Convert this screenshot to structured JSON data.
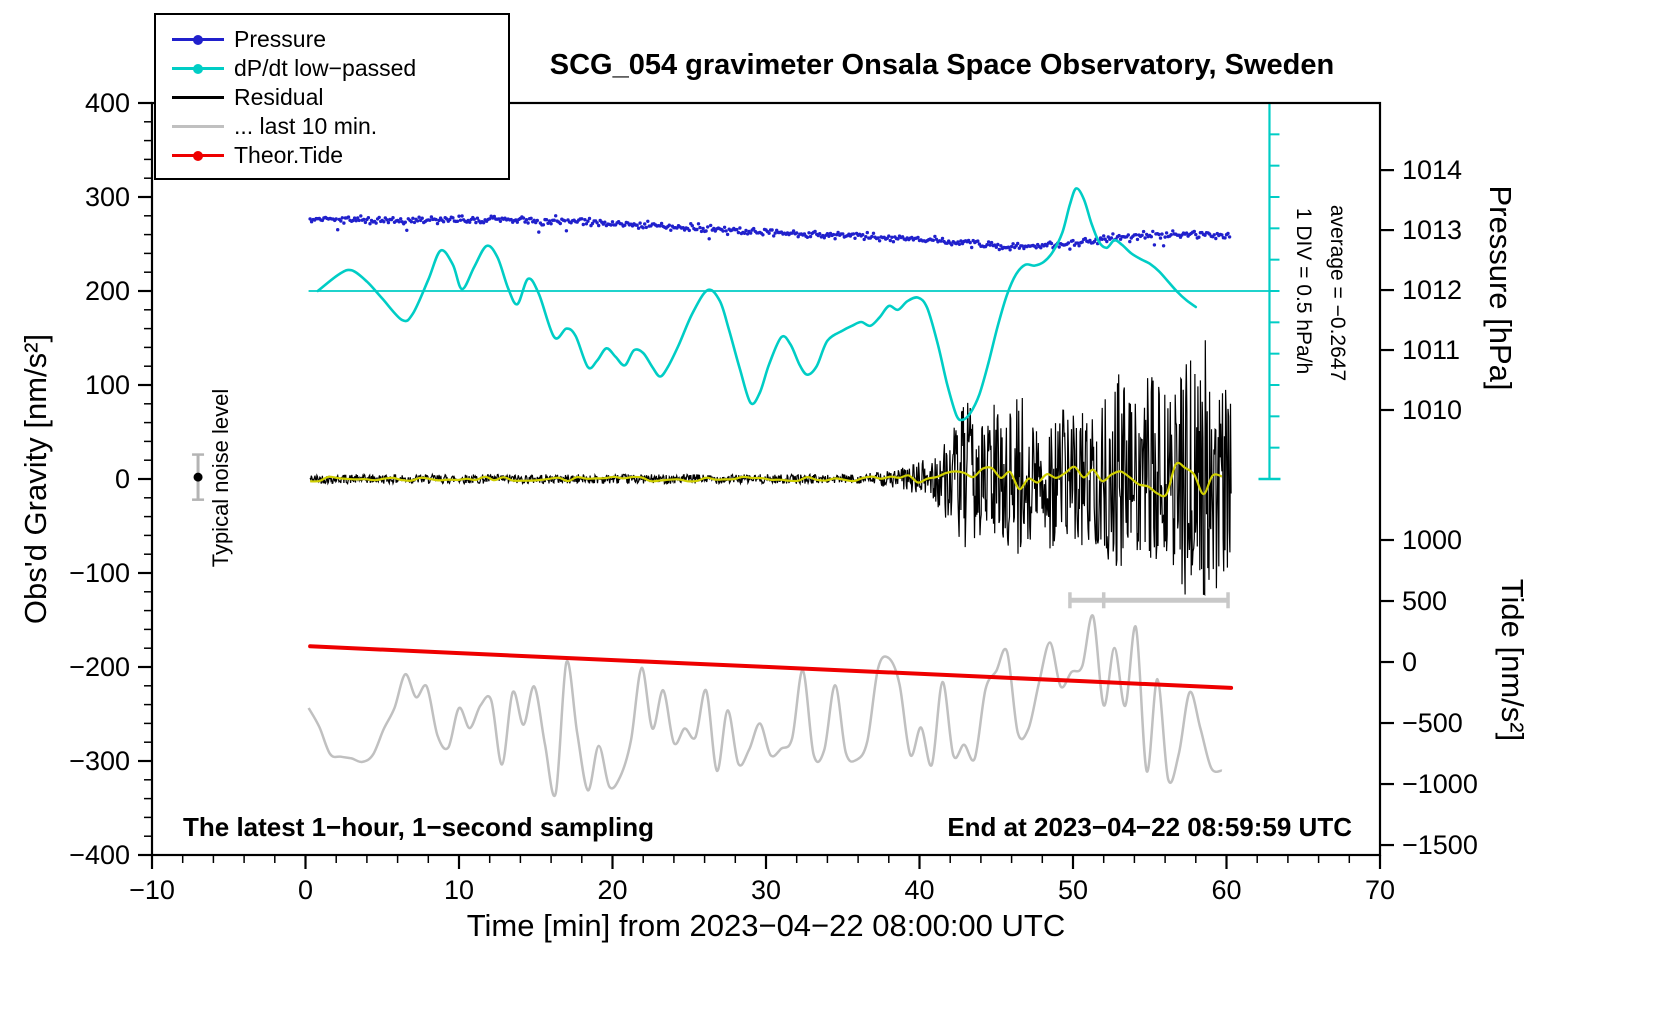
{
  "footer_left": "The latest 1−hour, 1−second sampling",
  "footer_right": "End at 2023−04−22 08:59:59 UTC",
  "annotations": {
    "noise_label": "Typical noise level",
    "div_label": "1 DIV = 0.5 hPa/h",
    "average_label": "average = −0.2647"
  },
  "legend": {
    "items": [
      {
        "label": "Pressure",
        "color": "#2020cc",
        "dot": true
      },
      {
        "label": "dP/dt low−passed",
        "color": "#00cdc5",
        "dot": true
      },
      {
        "label": "Residual",
        "color": "#000000",
        "dot": false
      },
      {
        "label": "... last 10 min.",
        "color": "#c0c0c0",
        "dot": false
      },
      {
        "label": "Theor.Tide",
        "color": "#ee0000",
        "dot": true
      }
    ]
  },
  "chart_data": {
    "type": "line",
    "title": "SCG_054 gravimeter Onsala Space Observatory, Sweden",
    "axes": {
      "x": {
        "label": "Time [min] from 2023−04−22 08:00:00 UTC",
        "range": [
          -10,
          70
        ],
        "major_step": 10,
        "minor_step": 2
      },
      "gravity": {
        "label": "Obs'd Gravity [nm/s²]",
        "range": [
          -400,
          400
        ],
        "major_step": 100,
        "minor_step": 20
      },
      "pressure": {
        "label": "Pressure [hPa]",
        "ticks": [
          1014,
          1013,
          1012,
          1011,
          1010
        ],
        "gravity_per_hpa": 63.8,
        "gravity_at_1012": 201
      },
      "tide": {
        "label": "Tide [nm/s²]",
        "ticks": [
          1000,
          500,
          0,
          -500,
          -1000,
          -1500
        ],
        "gravity_per_unit": 0.1298,
        "gravity_at_zero": -194.7
      }
    },
    "series": [
      {
        "name": "... last 10 min.",
        "axis": "gravity",
        "color": "#c0c0c0",
        "style": "valuenoise",
        "seed": 13,
        "knot_dt": 0.7,
        "center": -250,
        "x_range": [
          0.2,
          60.2
        ],
        "width": 2.5,
        "clamp": [
          -398,
          -126
        ],
        "envelope": [
          [
            0,
            48
          ],
          [
            4,
            52
          ],
          [
            7,
            58
          ],
          [
            10,
            52
          ],
          [
            12,
            62
          ],
          [
            14,
            85
          ],
          [
            15.5,
            100
          ],
          [
            17,
            112
          ],
          [
            18.5,
            98
          ],
          [
            20,
            82
          ],
          [
            22,
            58
          ],
          [
            24,
            55
          ],
          [
            26,
            62
          ],
          [
            28,
            64
          ],
          [
            30,
            58
          ],
          [
            32,
            54
          ],
          [
            34,
            58
          ],
          [
            36,
            62
          ],
          [
            38,
            60
          ],
          [
            40,
            58
          ],
          [
            42,
            62
          ],
          [
            44,
            66
          ],
          [
            46,
            72
          ],
          [
            48,
            88
          ],
          [
            50,
            112
          ],
          [
            51.5,
            125
          ],
          [
            53,
            128
          ],
          [
            54.5,
            135
          ],
          [
            56,
            122
          ],
          [
            57,
            108
          ],
          [
            58,
            82
          ],
          [
            59,
            74
          ],
          [
            60.2,
            68
          ]
        ]
      },
      {
        "name": "Theor.Tide",
        "axis": "tide",
        "color": "#ee0000",
        "style": "smooth",
        "width": 4,
        "points": [
          [
            0.3,
            129
          ],
          [
            15,
            44
          ],
          [
            30,
            -40
          ],
          [
            45,
            -125
          ],
          [
            60.3,
            -212
          ]
        ]
      },
      {
        "name": "Residual",
        "axis": "gravity",
        "color": "#000000",
        "style": "whitenoise",
        "seed": 42,
        "dt": 0.04,
        "center": 0,
        "x_range": [
          0.3,
          60.3
        ],
        "width": 1.2,
        "envelope": [
          [
            0,
            5
          ],
          [
            36,
            5
          ],
          [
            38,
            9
          ],
          [
            40,
            18
          ],
          [
            41.5,
            35
          ],
          [
            42.3,
            60
          ],
          [
            43,
            85
          ],
          [
            43.6,
            68
          ],
          [
            44.2,
            58
          ],
          [
            44.8,
            88
          ],
          [
            45.4,
            66
          ],
          [
            46,
            82
          ],
          [
            46.6,
            95
          ],
          [
            47.2,
            68
          ],
          [
            47.8,
            58
          ],
          [
            48.4,
            78
          ],
          [
            49,
            95
          ],
          [
            49.6,
            78
          ],
          [
            50.2,
            64
          ],
          [
            50.8,
            88
          ],
          [
            51.4,
            70
          ],
          [
            52,
            84
          ],
          [
            52.6,
            100
          ],
          [
            53.2,
            118
          ],
          [
            53.8,
            88
          ],
          [
            54.4,
            80
          ],
          [
            55,
            125
          ],
          [
            55.6,
            98
          ],
          [
            56.2,
            88
          ],
          [
            56.8,
            112
          ],
          [
            57.4,
            135
          ],
          [
            58,
            118
          ],
          [
            58.6,
            150
          ],
          [
            59.2,
            128
          ],
          [
            59.8,
            100
          ],
          [
            60.3,
            90
          ]
        ]
      },
      {
        "name": "Residual low−passed",
        "axis": "gravity",
        "color": "#cfcf00",
        "style": "valuenoise",
        "seed": 7,
        "knot_dt": 0.6,
        "center": 0,
        "x_range": [
          0.3,
          60.3
        ],
        "width": 2.2,
        "envelope": [
          [
            0,
            2.5
          ],
          [
            36,
            2.5
          ],
          [
            40,
            5
          ],
          [
            43,
            10
          ],
          [
            45,
            13
          ],
          [
            47,
            10
          ],
          [
            49,
            12
          ],
          [
            51,
            15
          ],
          [
            53,
            17
          ],
          [
            55,
            15
          ],
          [
            57,
            18
          ],
          [
            59,
            16
          ],
          [
            60.3,
            13
          ]
        ]
      },
      {
        "name": "Pressure",
        "axis": "pressure",
        "color": "#2020cc",
        "style": "dots",
        "seed": 99,
        "dot_r": 1.7,
        "step": 0.1,
        "noise_hpa": 0.03,
        "outlier_chance": 0.02,
        "points": [
          [
            0.3,
            1013.18
          ],
          [
            3,
            1013.17
          ],
          [
            6,
            1013.16
          ],
          [
            9,
            1013.17
          ],
          [
            12,
            1013.18
          ],
          [
            15,
            1013.16
          ],
          [
            18,
            1013.14
          ],
          [
            21,
            1013.1
          ],
          [
            24,
            1013.05
          ],
          [
            27,
            1013.01
          ],
          [
            30,
            1012.97
          ],
          [
            33,
            1012.93
          ],
          [
            36,
            1012.9
          ],
          [
            39,
            1012.86
          ],
          [
            42,
            1012.8
          ],
          [
            44,
            1012.76
          ],
          [
            46,
            1012.72
          ],
          [
            48,
            1012.73
          ],
          [
            50,
            1012.79
          ],
          [
            52,
            1012.86
          ],
          [
            54,
            1012.9
          ],
          [
            56,
            1012.92
          ],
          [
            58,
            1012.93
          ],
          [
            60.3,
            1012.89
          ]
        ]
      },
      {
        "name": "dP/dt low−passed",
        "axis": "gravity",
        "color": "#00cdc5",
        "style": "smooth",
        "width": 2.6,
        "points": [
          [
            0.8,
            200
          ],
          [
            2.2,
            218
          ],
          [
            3,
            222
          ],
          [
            4,
            210
          ],
          [
            5,
            192
          ],
          [
            6.3,
            169
          ],
          [
            7,
            176
          ],
          [
            8,
            212
          ],
          [
            8.8,
            243
          ],
          [
            9.6,
            228
          ],
          [
            10.2,
            202
          ],
          [
            11,
            226
          ],
          [
            11.8,
            248
          ],
          [
            12.5,
            236
          ],
          [
            13.2,
            203
          ],
          [
            13.8,
            186
          ],
          [
            14.5,
            213
          ],
          [
            15.2,
            197
          ],
          [
            16.2,
            151
          ],
          [
            17,
            160
          ],
          [
            17.6,
            152
          ],
          [
            18.4,
            119
          ],
          [
            19,
            126
          ],
          [
            19.6,
            139
          ],
          [
            20.2,
            130
          ],
          [
            20.8,
            121
          ],
          [
            21.4,
            137
          ],
          [
            22,
            134
          ],
          [
            22.6,
            119
          ],
          [
            23.1,
            109
          ],
          [
            23.6,
            119
          ],
          [
            24.3,
            142
          ],
          [
            25.2,
            176
          ],
          [
            26.2,
            201
          ],
          [
            27,
            189
          ],
          [
            27.6,
            158
          ],
          [
            28.3,
            117
          ],
          [
            29,
            81
          ],
          [
            29.6,
            92
          ],
          [
            30.2,
            122
          ],
          [
            31,
            151
          ],
          [
            31.6,
            143
          ],
          [
            32.2,
            121
          ],
          [
            32.7,
            111
          ],
          [
            33.3,
            120
          ],
          [
            34,
            147
          ],
          [
            35,
            158
          ],
          [
            35.6,
            163
          ],
          [
            36.2,
            167
          ],
          [
            36.8,
            163
          ],
          [
            37.4,
            172
          ],
          [
            38,
            184
          ],
          [
            38.6,
            180
          ],
          [
            39.2,
            189
          ],
          [
            39.9,
            193
          ],
          [
            40.5,
            182
          ],
          [
            41.2,
            143
          ],
          [
            41.8,
            101
          ],
          [
            42.4,
            68
          ],
          [
            42.8,
            63
          ],
          [
            43.3,
            70
          ],
          [
            43.9,
            90
          ],
          [
            44.5,
            124
          ],
          [
            45.1,
            163
          ],
          [
            45.7,
            196
          ],
          [
            46.3,
            218
          ],
          [
            46.9,
            228
          ],
          [
            47.5,
            227
          ],
          [
            48.1,
            231
          ],
          [
            48.7,
            242
          ],
          [
            49.3,
            262
          ],
          [
            49.8,
            292
          ],
          [
            50.2,
            309
          ],
          [
            50.7,
            298
          ],
          [
            51.2,
            272
          ],
          [
            51.7,
            252
          ],
          [
            52.2,
            246
          ],
          [
            52.7,
            254
          ],
          [
            53.2,
            249
          ],
          [
            53.8,
            240
          ],
          [
            54.4,
            234
          ],
          [
            55,
            229
          ],
          [
            55.6,
            221
          ],
          [
            56.2,
            210
          ],
          [
            56.8,
            199
          ],
          [
            57.4,
            190
          ],
          [
            58,
            183
          ]
        ]
      }
    ],
    "extras": {
      "dpdt_axis": {
        "x": 62.8,
        "g_min": 0,
        "g_max": 400,
        "divisions": 12,
        "tick_len": 10,
        "ref_g": 200,
        "ref_x1": 0.2,
        "ref_x2": 62.8,
        "color": "#00cdc5"
      },
      "noise_marker": {
        "x": -7,
        "dot_g": 2,
        "bar_top_g": 26,
        "bar_bot_g": -22,
        "cap_half": 6,
        "bar_color": "#b4b4b4"
      },
      "scale_bar": {
        "g": -129,
        "x1": 49.8,
        "x2": 60.1,
        "caps": [
          49.8,
          52.0,
          60.1
        ],
        "cap_half": 8,
        "color": "#c8c8c8"
      }
    }
  }
}
